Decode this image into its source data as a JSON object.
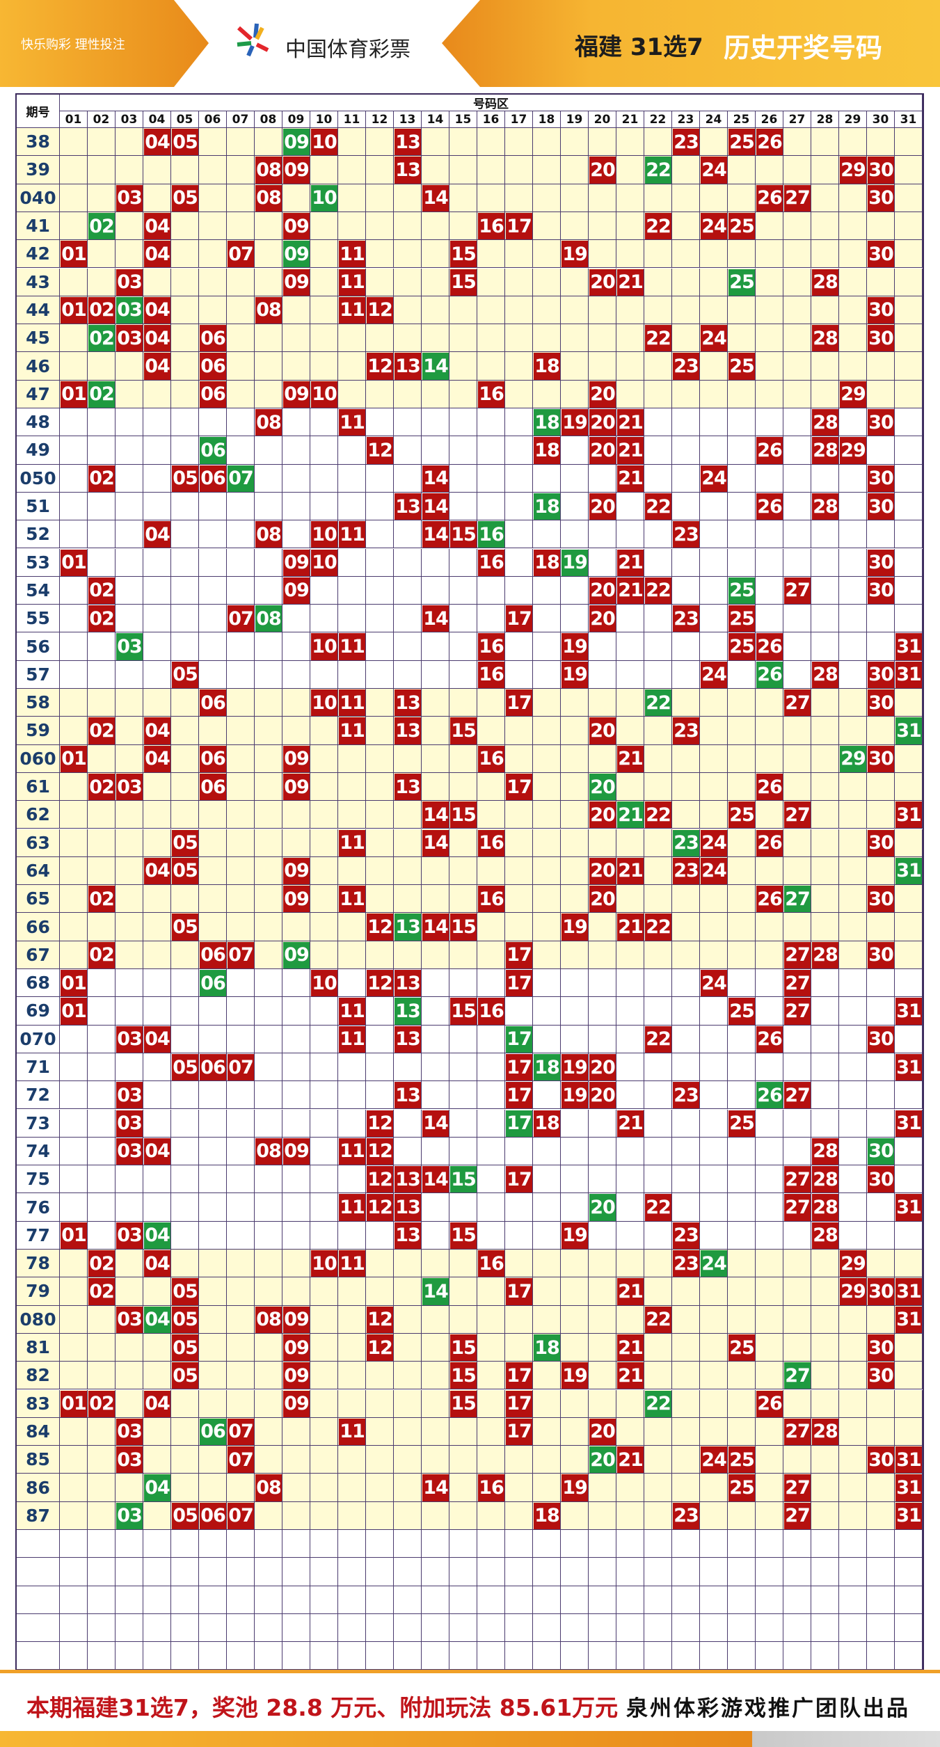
{
  "header": {
    "slogan": "快乐购彩  理性投注",
    "brand": "中国体育彩票",
    "game": "福建 31选7",
    "title": "历史开奖号码"
  },
  "table": {
    "issue_header": "期号",
    "zone_header": "号码区",
    "columns": [
      "01",
      "02",
      "03",
      "04",
      "05",
      "06",
      "07",
      "08",
      "09",
      "10",
      "11",
      "12",
      "13",
      "14",
      "15",
      "16",
      "17",
      "18",
      "19",
      "20",
      "21",
      "22",
      "23",
      "24",
      "25",
      "26",
      "27",
      "28",
      "29",
      "30",
      "31"
    ],
    "rows": [
      {
        "issue": "38",
        "red": [
          "04",
          "05",
          "10",
          "13",
          "23",
          "25",
          "26"
        ],
        "green": [
          "09"
        ]
      },
      {
        "issue": "39",
        "red": [
          "08",
          "09",
          "13",
          "20",
          "24",
          "29",
          "30"
        ],
        "green": [
          "22"
        ]
      },
      {
        "issue": "040",
        "red": [
          "03",
          "05",
          "08",
          "14",
          "26",
          "27",
          "30"
        ],
        "green": [
          "10"
        ]
      },
      {
        "issue": "41",
        "red": [
          "04",
          "09",
          "16",
          "17",
          "22",
          "24",
          "25"
        ],
        "green": [
          "02"
        ]
      },
      {
        "issue": "42",
        "red": [
          "01",
          "04",
          "07",
          "11",
          "15",
          "19",
          "30"
        ],
        "green": [
          "09"
        ]
      },
      {
        "issue": "43",
        "red": [
          "03",
          "09",
          "11",
          "15",
          "20",
          "21",
          "28"
        ],
        "green": [
          "25"
        ]
      },
      {
        "issue": "44",
        "red": [
          "01",
          "02",
          "04",
          "08",
          "11",
          "12",
          "30"
        ],
        "green": [
          "03"
        ]
      },
      {
        "issue": "45",
        "red": [
          "03",
          "04",
          "06",
          "22",
          "24",
          "28",
          "30"
        ],
        "green": [
          "02"
        ]
      },
      {
        "issue": "46",
        "red": [
          "04",
          "06",
          "12",
          "13",
          "18",
          "23",
          "25"
        ],
        "green": [
          "14"
        ]
      },
      {
        "issue": "47",
        "red": [
          "01",
          "06",
          "09",
          "10",
          "16",
          "20",
          "29"
        ],
        "green": [
          "02"
        ]
      },
      {
        "issue": "48",
        "red": [
          "08",
          "11",
          "19",
          "20",
          "21",
          "28",
          "30"
        ],
        "green": [
          "18"
        ]
      },
      {
        "issue": "49",
        "red": [
          "12",
          "18",
          "20",
          "21",
          "26",
          "28",
          "29"
        ],
        "green": [
          "06"
        ]
      },
      {
        "issue": "050",
        "red": [
          "02",
          "05",
          "06",
          "14",
          "21",
          "24",
          "30"
        ],
        "green": [
          "07"
        ]
      },
      {
        "issue": "51",
        "red": [
          "13",
          "14",
          "20",
          "22",
          "26",
          "28",
          "30"
        ],
        "green": [
          "18"
        ]
      },
      {
        "issue": "52",
        "red": [
          "04",
          "08",
          "10",
          "11",
          "14",
          "15",
          "23"
        ],
        "green": [
          "16"
        ]
      },
      {
        "issue": "53",
        "red": [
          "01",
          "09",
          "10",
          "16",
          "18",
          "21",
          "30"
        ],
        "green": [
          "19"
        ]
      },
      {
        "issue": "54",
        "red": [
          "02",
          "09",
          "20",
          "21",
          "22",
          "27",
          "30"
        ],
        "green": [
          "25"
        ]
      },
      {
        "issue": "55",
        "red": [
          "02",
          "07",
          "14",
          "17",
          "20",
          "23",
          "25"
        ],
        "green": [
          "08"
        ]
      },
      {
        "issue": "56",
        "red": [
          "10",
          "11",
          "16",
          "19",
          "25",
          "26",
          "31"
        ],
        "green": [
          "03"
        ]
      },
      {
        "issue": "57",
        "red": [
          "05",
          "16",
          "19",
          "24",
          "28",
          "30",
          "31"
        ],
        "green": [
          "26"
        ]
      },
      {
        "issue": "58",
        "red": [
          "06",
          "10",
          "11",
          "13",
          "17",
          "27",
          "30"
        ],
        "green": [
          "22"
        ]
      },
      {
        "issue": "59",
        "red": [
          "02",
          "04",
          "11",
          "13",
          "15",
          "20",
          "23"
        ],
        "green": [
          "31"
        ]
      },
      {
        "issue": "060",
        "red": [
          "01",
          "04",
          "06",
          "09",
          "16",
          "21",
          "30"
        ],
        "green": [
          "29"
        ]
      },
      {
        "issue": "61",
        "red": [
          "02",
          "03",
          "06",
          "09",
          "13",
          "17",
          "26"
        ],
        "green": [
          "20"
        ]
      },
      {
        "issue": "62",
        "red": [
          "14",
          "15",
          "20",
          "22",
          "25",
          "27",
          "31"
        ],
        "green": [
          "21"
        ]
      },
      {
        "issue": "63",
        "red": [
          "05",
          "11",
          "14",
          "16",
          "24",
          "26",
          "30"
        ],
        "green": [
          "23"
        ]
      },
      {
        "issue": "64",
        "red": [
          "04",
          "05",
          "09",
          "20",
          "21",
          "23",
          "24"
        ],
        "green": [
          "31"
        ]
      },
      {
        "issue": "65",
        "red": [
          "02",
          "09",
          "11",
          "16",
          "20",
          "26",
          "30"
        ],
        "green": [
          "27"
        ]
      },
      {
        "issue": "66",
        "red": [
          "05",
          "12",
          "14",
          "15",
          "19",
          "21",
          "22"
        ],
        "green": [
          "13"
        ]
      },
      {
        "issue": "67",
        "red": [
          "02",
          "06",
          "07",
          "17",
          "27",
          "28",
          "30"
        ],
        "green": [
          "09"
        ]
      },
      {
        "issue": "68",
        "red": [
          "01",
          "10",
          "12",
          "13",
          "17",
          "24",
          "27"
        ],
        "green": [
          "06"
        ]
      },
      {
        "issue": "69",
        "red": [
          "01",
          "11",
          "15",
          "16",
          "25",
          "27",
          "31"
        ],
        "green": [
          "13"
        ]
      },
      {
        "issue": "070",
        "red": [
          "03",
          "04",
          "11",
          "13",
          "22",
          "26",
          "30"
        ],
        "green": [
          "17"
        ]
      },
      {
        "issue": "71",
        "red": [
          "05",
          "06",
          "07",
          "17",
          "19",
          "20",
          "31"
        ],
        "green": [
          "18"
        ]
      },
      {
        "issue": "72",
        "red": [
          "03",
          "13",
          "17",
          "19",
          "20",
          "23",
          "27"
        ],
        "green": [
          "26"
        ]
      },
      {
        "issue": "73",
        "red": [
          "03",
          "12",
          "14",
          "18",
          "21",
          "25",
          "31"
        ],
        "green": [
          "17"
        ]
      },
      {
        "issue": "74",
        "red": [
          "03",
          "04",
          "08",
          "09",
          "11",
          "12",
          "28"
        ],
        "green": [
          "30"
        ]
      },
      {
        "issue": "75",
        "red": [
          "12",
          "13",
          "14",
          "17",
          "27",
          "28",
          "30"
        ],
        "green": [
          "15"
        ]
      },
      {
        "issue": "76",
        "red": [
          "11",
          "12",
          "13",
          "22",
          "27",
          "28",
          "31"
        ],
        "green": [
          "20"
        ]
      },
      {
        "issue": "77",
        "red": [
          "01",
          "03",
          "13",
          "15",
          "19",
          "23",
          "28"
        ],
        "green": [
          "04"
        ]
      },
      {
        "issue": "78",
        "red": [
          "02",
          "04",
          "10",
          "11",
          "16",
          "23",
          "29"
        ],
        "green": [
          "24"
        ]
      },
      {
        "issue": "79",
        "red": [
          "02",
          "05",
          "17",
          "21",
          "29",
          "30",
          "31"
        ],
        "green": [
          "14"
        ]
      },
      {
        "issue": "080",
        "red": [
          "03",
          "05",
          "08",
          "09",
          "12",
          "22",
          "31"
        ],
        "green": [
          "04"
        ]
      },
      {
        "issue": "81",
        "red": [
          "05",
          "09",
          "12",
          "15",
          "21",
          "25",
          "30"
        ],
        "green": [
          "18"
        ]
      },
      {
        "issue": "82",
        "red": [
          "05",
          "09",
          "15",
          "17",
          "19",
          "21",
          "30"
        ],
        "green": [
          "27"
        ]
      },
      {
        "issue": "83",
        "red": [
          "01",
          "02",
          "04",
          "09",
          "15",
          "17",
          "26"
        ],
        "green": [
          "22"
        ]
      },
      {
        "issue": "84",
        "red": [
          "03",
          "07",
          "11",
          "17",
          "20",
          "27",
          "28"
        ],
        "green": [
          "06"
        ]
      },
      {
        "issue": "85",
        "red": [
          "03",
          "07",
          "21",
          "24",
          "25",
          "30",
          "31"
        ],
        "green": [
          "20"
        ]
      },
      {
        "issue": "86",
        "red": [
          "08",
          "14",
          "16",
          "19",
          "25",
          "27",
          "31"
        ],
        "green": [
          "04"
        ]
      },
      {
        "issue": "87",
        "red": [
          "05",
          "06",
          "07",
          "18",
          "23",
          "27",
          "31"
        ],
        "green": [
          "03"
        ]
      }
    ]
  },
  "footer": {
    "notice": "本期福建31选7，奖池 28.8 万元、附加玩法 85.61万元",
    "credit": "泉州体彩游戏推广团队出品"
  }
}
